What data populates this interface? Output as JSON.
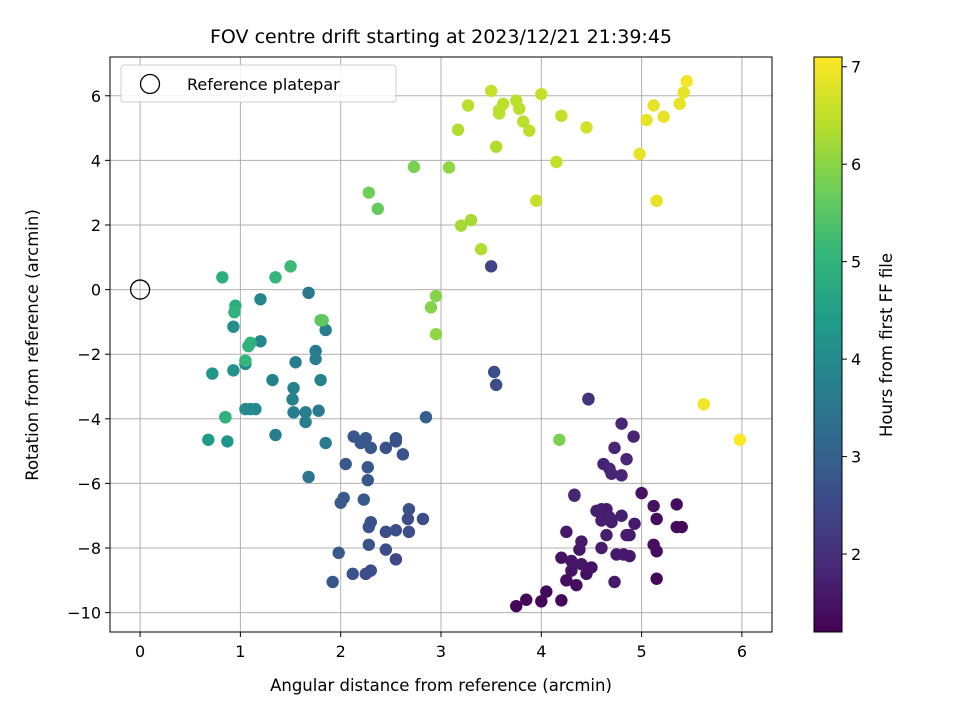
{
  "chart_data": {
    "type": "scatter",
    "title": "FOV centre drift starting at 2023/12/21 21:39:45",
    "xlabel": "Angular distance from reference (arcmin)",
    "ylabel": "Rotation from reference (arcmin)",
    "xlim": [
      -0.3,
      6.3
    ],
    "ylim": [
      -10.6,
      7.2
    ],
    "x_ticks": [
      0,
      1,
      2,
      3,
      4,
      5,
      6
    ],
    "x_tick_labels": [
      "0",
      "1",
      "2",
      "3",
      "4",
      "5",
      "6"
    ],
    "y_ticks": [
      -10,
      -8,
      -6,
      -4,
      -2,
      0,
      2,
      4,
      6
    ],
    "y_tick_labels": [
      "−10",
      "−8",
      "−6",
      "−4",
      "−2",
      "0",
      "2",
      "4",
      "6"
    ],
    "grid": true,
    "legend": {
      "placement": "upper-left",
      "label": "Reference platepar"
    },
    "reference_point": {
      "x": 0,
      "y": 0,
      "style": "open-circle",
      "color": "#000000"
    },
    "colorbar": {
      "label": "Hours from first FF file",
      "range": [
        1.2,
        7.1
      ],
      "ticks": [
        2,
        3,
        4,
        5,
        6,
        7
      ],
      "tick_labels": [
        "2",
        "3",
        "4",
        "5",
        "6",
        "7"
      ],
      "colormap": "viridis"
    },
    "colormap_stops": [
      "#440154",
      "#482878",
      "#3e4989",
      "#31688e",
      "#26828e",
      "#1f9e89",
      "#35b779",
      "#6ece58",
      "#b5de2b",
      "#fde725"
    ],
    "points": [
      [
        3.75,
        -9.8,
        1.25
      ],
      [
        3.85,
        -9.6,
        1.3
      ],
      [
        4.0,
        -9.65,
        1.3
      ],
      [
        4.2,
        -9.62,
        1.3
      ],
      [
        4.05,
        -9.35,
        1.35
      ],
      [
        4.25,
        -9.0,
        1.4
      ],
      [
        4.35,
        -9.15,
        1.4
      ],
      [
        4.45,
        -8.8,
        1.45
      ],
      [
        4.5,
        -8.6,
        1.5
      ],
      [
        4.3,
        -8.7,
        1.5
      ],
      [
        4.2,
        -8.3,
        1.5
      ],
      [
        4.3,
        -8.4,
        1.55
      ],
      [
        4.4,
        -8.5,
        1.55
      ],
      [
        4.38,
        -8.05,
        1.55
      ],
      [
        4.4,
        -7.8,
        1.6
      ],
      [
        4.25,
        -7.5,
        1.6
      ],
      [
        4.6,
        -8.0,
        1.65
      ],
      [
        4.65,
        -7.6,
        1.7
      ],
      [
        4.7,
        -7.2,
        1.7
      ],
      [
        4.73,
        -9.05,
        1.6
      ],
      [
        4.75,
        -8.2,
        1.6
      ],
      [
        4.82,
        -8.2,
        1.6
      ],
      [
        4.88,
        -8.25,
        1.6
      ],
      [
        4.88,
        -7.6,
        1.6
      ],
      [
        4.8,
        -7.0,
        1.7
      ],
      [
        4.85,
        -7.6,
        1.65
      ],
      [
        4.93,
        -7.25,
        1.6
      ],
      [
        4.6,
        -6.8,
        1.65
      ],
      [
        4.65,
        -6.8,
        1.65
      ],
      [
        4.6,
        -7.15,
        1.7
      ],
      [
        4.55,
        -6.85,
        1.7
      ],
      [
        4.68,
        -7.05,
        1.7
      ],
      [
        4.33,
        -6.35,
        1.8
      ],
      [
        4.33,
        -6.38,
        1.8
      ],
      [
        4.62,
        -5.4,
        1.75
      ],
      [
        4.68,
        -5.55,
        1.8
      ],
      [
        4.7,
        -5.7,
        1.8
      ],
      [
        4.8,
        -5.75,
        1.8
      ],
      [
        4.85,
        -5.25,
        1.8
      ],
      [
        4.73,
        -4.9,
        1.8
      ],
      [
        4.8,
        -4.15,
        1.8
      ],
      [
        4.92,
        -4.55,
        1.8
      ],
      [
        5.0,
        -6.3,
        1.5
      ],
      [
        5.12,
        -6.7,
        1.5
      ],
      [
        5.15,
        -7.1,
        1.4
      ],
      [
        5.35,
        -6.65,
        1.4
      ],
      [
        5.35,
        -7.35,
        1.35
      ],
      [
        5.4,
        -7.35,
        1.3
      ],
      [
        5.12,
        -7.9,
        1.4
      ],
      [
        5.15,
        -8.1,
        1.4
      ],
      [
        5.15,
        -8.95,
        1.3
      ],
      [
        4.47,
        -3.4,
        2.1
      ],
      [
        4.47,
        -3.38,
        2.1
      ],
      [
        3.5,
        0.72,
        2.4
      ],
      [
        3.53,
        -2.55,
        2.6
      ],
      [
        3.55,
        -2.95,
        2.6
      ],
      [
        2.85,
        -3.95,
        3.0
      ],
      [
        2.13,
        -4.55,
        2.8
      ],
      [
        2.2,
        -4.75,
        2.8
      ],
      [
        2.25,
        -4.6,
        2.8
      ],
      [
        2.3,
        -4.9,
        2.8
      ],
      [
        2.45,
        -4.9,
        2.7
      ],
      [
        2.55,
        -4.7,
        2.7
      ],
      [
        2.55,
        -4.6,
        2.7
      ],
      [
        2.62,
        -5.1,
        2.7
      ],
      [
        2.05,
        -5.4,
        2.8
      ],
      [
        2.27,
        -5.5,
        2.8
      ],
      [
        2.27,
        -5.9,
        2.8
      ],
      [
        2.03,
        -6.45,
        2.9
      ],
      [
        2.0,
        -6.6,
        2.9
      ],
      [
        2.23,
        -6.5,
        2.8
      ],
      [
        2.3,
        -7.2,
        2.7
      ],
      [
        2.28,
        -7.35,
        2.7
      ],
      [
        2.28,
        -7.9,
        2.7
      ],
      [
        2.45,
        -7.5,
        2.6
      ],
      [
        2.55,
        -7.45,
        2.6
      ],
      [
        2.68,
        -6.8,
        2.7
      ],
      [
        2.67,
        -7.1,
        2.6
      ],
      [
        2.82,
        -7.1,
        2.6
      ],
      [
        2.68,
        -7.5,
        2.6
      ],
      [
        1.98,
        -8.15,
        2.8
      ],
      [
        2.45,
        -8.05,
        2.6
      ],
      [
        2.55,
        -8.35,
        2.5
      ],
      [
        2.12,
        -8.8,
        2.7
      ],
      [
        2.25,
        -8.8,
        2.6
      ],
      [
        2.3,
        -8.7,
        2.6
      ],
      [
        1.92,
        -9.05,
        2.8
      ],
      [
        1.68,
        -0.1,
        3.6
      ],
      [
        1.2,
        -0.3,
        3.9
      ],
      [
        1.85,
        -1.25,
        3.7
      ],
      [
        1.2,
        -1.6,
        3.9
      ],
      [
        1.75,
        -1.9,
        3.7
      ],
      [
        1.75,
        -2.15,
        3.7
      ],
      [
        1.55,
        -2.25,
        3.7
      ],
      [
        1.8,
        -2.8,
        3.8
      ],
      [
        1.32,
        -2.8,
        3.8
      ],
      [
        1.53,
        -3.05,
        3.8
      ],
      [
        1.52,
        -3.4,
        3.8
      ],
      [
        1.53,
        -3.8,
        3.7
      ],
      [
        1.65,
        -3.8,
        3.7
      ],
      [
        1.65,
        -4.1,
        3.7
      ],
      [
        1.78,
        -3.75,
        3.6
      ],
      [
        1.85,
        -4.75,
        3.6
      ],
      [
        1.35,
        -4.5,
        3.7
      ],
      [
        1.68,
        -5.8,
        3.5
      ],
      [
        0.93,
        -1.15,
        4.1
      ],
      [
        1.05,
        -2.3,
        4.0
      ],
      [
        0.93,
        -2.5,
        4.2
      ],
      [
        0.72,
        -2.6,
        4.3
      ],
      [
        1.05,
        -3.7,
        4.1
      ],
      [
        1.1,
        -3.7,
        4.0
      ],
      [
        1.15,
        -3.7,
        4.0
      ],
      [
        0.68,
        -4.65,
        4.4
      ],
      [
        0.85,
        -3.95,
        4.8
      ],
      [
        0.87,
        -4.7,
        4.3
      ],
      [
        0.82,
        0.38,
        4.9
      ],
      [
        0.95,
        -0.5,
        4.9
      ],
      [
        0.94,
        -0.7,
        5.0
      ],
      [
        1.1,
        -1.65,
        5.0
      ],
      [
        1.08,
        -1.75,
        5.0
      ],
      [
        1.05,
        -2.2,
        5.1
      ],
      [
        0.85,
        -3.95,
        5.0
      ],
      [
        1.35,
        0.38,
        5.1
      ],
      [
        1.5,
        0.72,
        5.2
      ],
      [
        1.8,
        -0.95,
        5.5
      ],
      [
        1.82,
        -0.95,
        5.6
      ],
      [
        4.18,
        -4.65,
        5.9
      ],
      [
        2.28,
        3.0,
        5.8
      ],
      [
        2.37,
        2.5,
        5.7
      ],
      [
        2.73,
        3.8,
        5.9
      ],
      [
        3.08,
        3.78,
        6.1
      ],
      [
        2.95,
        -0.2,
        6.0
      ],
      [
        2.9,
        -0.55,
        6.0
      ],
      [
        2.95,
        -1.38,
        6.1
      ],
      [
        3.2,
        1.98,
        6.3
      ],
      [
        3.3,
        2.15,
        6.3
      ],
      [
        3.4,
        1.25,
        6.4
      ],
      [
        3.17,
        4.95,
        6.4
      ],
      [
        3.27,
        5.7,
        6.5
      ],
      [
        3.5,
        6.15,
        6.6
      ],
      [
        3.55,
        4.42,
        6.4
      ],
      [
        3.58,
        5.55,
        6.5
      ],
      [
        3.58,
        5.45,
        6.5
      ],
      [
        3.62,
        5.75,
        6.5
      ],
      [
        3.75,
        5.85,
        6.5
      ],
      [
        3.78,
        5.6,
        6.5
      ],
      [
        3.82,
        5.2,
        6.5
      ],
      [
        3.88,
        4.92,
        6.5
      ],
      [
        3.95,
        2.75,
        6.6
      ],
      [
        4.0,
        6.05,
        6.6
      ],
      [
        4.15,
        3.95,
        6.6
      ],
      [
        4.2,
        5.38,
        6.6
      ],
      [
        4.45,
        5.02,
        6.7
      ],
      [
        4.98,
        4.2,
        6.9
      ],
      [
        5.05,
        5.25,
        6.9
      ],
      [
        5.12,
        5.7,
        6.9
      ],
      [
        5.22,
        5.35,
        6.9
      ],
      [
        5.15,
        2.75,
        6.9
      ],
      [
        5.38,
        5.75,
        6.9
      ],
      [
        5.42,
        6.1,
        6.9
      ],
      [
        5.45,
        6.45,
        7.0
      ],
      [
        5.62,
        -3.55,
        7.0
      ],
      [
        5.98,
        -4.65,
        7.1
      ]
    ]
  }
}
